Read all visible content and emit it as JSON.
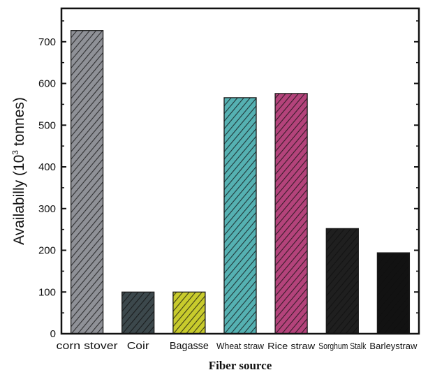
{
  "chart_data": {
    "type": "bar",
    "categories": [
      "corn stover",
      "Coir",
      "Bagasse",
      "Wheat straw",
      "Rice straw",
      "Sorghum  Stalk",
      "Barleystraw"
    ],
    "values": [
      727,
      100,
      100,
      566,
      576,
      252,
      194
    ],
    "colors": [
      "#8f9197",
      "#3c484c",
      "#c8cb2c",
      "#55b1b2",
      "#b4437b",
      "#1f1f1f",
      "#121212"
    ],
    "xlabel": "Fiber source",
    "ylabel_main": "Availabilly (10",
    "ylabel_sup": "3",
    "ylabel_tail": " tonnes)",
    "ylim": [
      0,
      780
    ],
    "yticks": [
      "0",
      "100",
      "200",
      "300",
      "400",
      "500",
      "600",
      "700"
    ],
    "ytick_values": [
      0,
      100,
      200,
      300,
      400,
      500,
      600,
      700
    ],
    "grid": false,
    "hatch": "diagonal"
  }
}
